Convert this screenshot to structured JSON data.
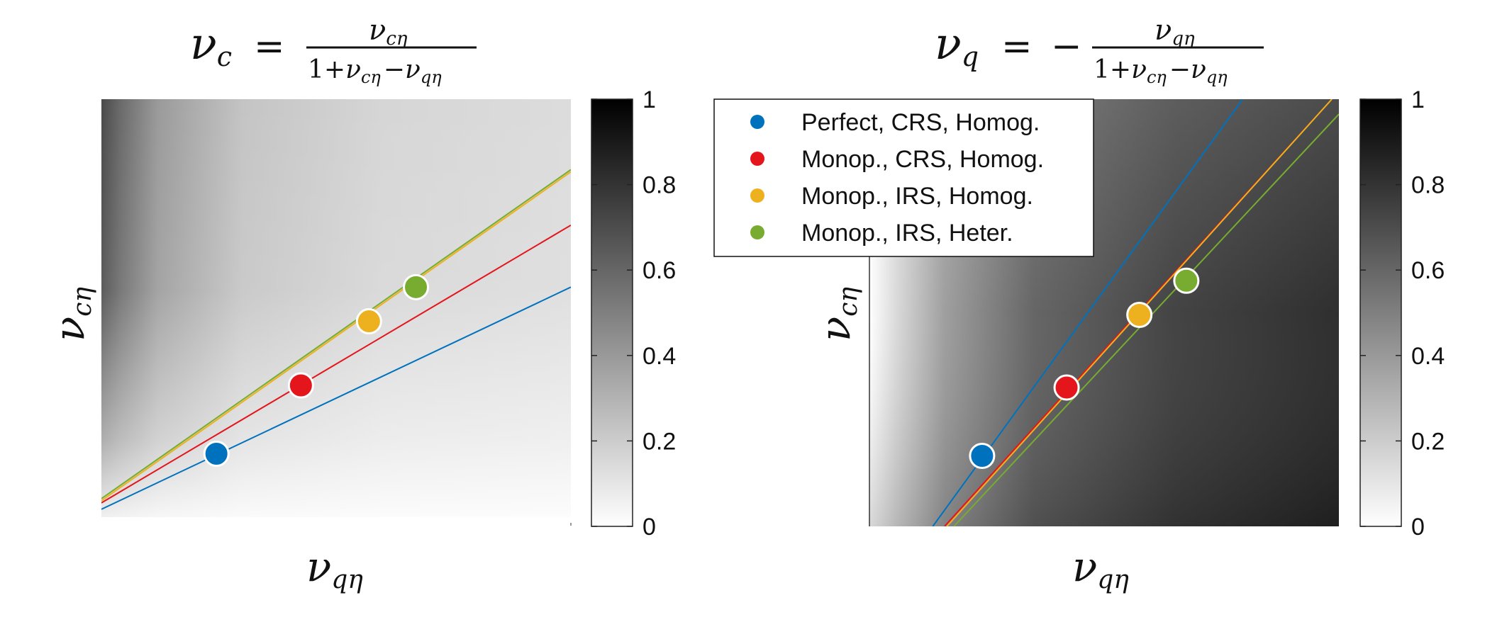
{
  "chart_data": [
    {
      "type": "heatmap",
      "title": {
        "lhs_sym": "ν",
        "lhs_sub": "c",
        "eq": "=",
        "sign": "",
        "num_sym": "ν",
        "num_sub": "cη",
        "den_prefix": "1+",
        "den_a_sym": "ν",
        "den_a_sub": "cη",
        "den_op": "−",
        "den_b_sym": "ν",
        "den_b_sub": "qη"
      },
      "xlabel": {
        "sym": "ν",
        "sub": "qη"
      },
      "ylabel": {
        "sym": "ν",
        "sub": "cη"
      },
      "colorbar": {
        "ticks": [
          0,
          0.2,
          0.4,
          0.6,
          0.8,
          1
        ],
        "tick_labels": [
          "0",
          "0.2",
          "0.4",
          "0.6",
          "0.8",
          "1"
        ],
        "range": [
          0,
          1
        ]
      },
      "points": [
        {
          "name": "Perfect, CRS, Homog.",
          "x": 0.245,
          "y": 0.17,
          "color": "#0072BD"
        },
        {
          "name": "Monop., CRS, Homog.",
          "x": 0.425,
          "y": 0.33,
          "color": "#E4151B"
        },
        {
          "name": "Monop., IRS, Homog.",
          "x": 0.57,
          "y": 0.48,
          "color": "#EDB120"
        },
        {
          "name": "Monop., IRS, Heter.",
          "x": 0.67,
          "y": 0.56,
          "color": "#77AC30"
        }
      ],
      "lines": [
        {
          "color": "#0072BD",
          "y_at_x0": 0.04,
          "y_at_x1": 0.56
        },
        {
          "color": "#E4151B",
          "y_at_x0": 0.055,
          "y_at_x1": 0.705
        },
        {
          "color": "#EDB120",
          "y_at_x0": 0.06,
          "y_at_x1": 0.83
        },
        {
          "color": "#77AC30",
          "y_at_x0": 0.065,
          "y_at_x1": 0.835
        }
      ]
    },
    {
      "type": "heatmap",
      "title": {
        "lhs_sym": "ν",
        "lhs_sub": "q",
        "eq": "=",
        "sign": "−",
        "num_sym": "ν",
        "num_sub": "qη",
        "den_prefix": "1+",
        "den_a_sym": "ν",
        "den_a_sub": "cη",
        "den_op": "−",
        "den_b_sym": "ν",
        "den_b_sub": "qη"
      },
      "xlabel": {
        "sym": "ν",
        "sub": "qη"
      },
      "ylabel": {
        "sym": "ν",
        "sub": "cη"
      },
      "colorbar": {
        "ticks": [
          0,
          0.2,
          0.4,
          0.6,
          0.8,
          1
        ],
        "tick_labels": [
          "0",
          "0.2",
          "0.4",
          "0.6",
          "0.8",
          "1"
        ],
        "range": [
          0,
          1
        ]
      },
      "points": [
        {
          "name": "Perfect, CRS, Homog.",
          "x": 0.24,
          "y": 0.165,
          "color": "#0072BD"
        },
        {
          "name": "Monop., CRS, Homog.",
          "x": 0.42,
          "y": 0.325,
          "color": "#E4151B"
        },
        {
          "name": "Monop., IRS, Homog.",
          "x": 0.575,
          "y": 0.495,
          "color": "#EDB120"
        },
        {
          "name": "Monop., IRS, Heter.",
          "x": 0.675,
          "y": 0.575,
          "color": "#77AC30"
        }
      ],
      "lines": [
        {
          "color": "#0072BD",
          "x_at_y0": 0.135,
          "x_at_y1": 0.795
        },
        {
          "color": "#E4151B",
          "x_at_y0": 0.16,
          "x_at_y1": 0.985
        },
        {
          "color": "#EDB120",
          "x_at_y0": 0.165,
          "x_at_y1": 0.985
        },
        {
          "color": "#77AC30",
          "x_at_y0": 0.18,
          "x_at_y1": 1.0,
          "y_at_x1": 0.965
        }
      ],
      "legend": {
        "placement": "top-left, overlapping plot",
        "entries": [
          {
            "label": "Perfect, CRS, Homog.",
            "color": "#0072BD"
          },
          {
            "label": "Monop., CRS, Homog.",
            "color": "#E4151B"
          },
          {
            "label": "Monop., IRS, Homog.",
            "color": "#EDB120"
          },
          {
            "label": "Monop., IRS, Heter.",
            "color": "#77AC30"
          }
        ]
      }
    }
  ]
}
